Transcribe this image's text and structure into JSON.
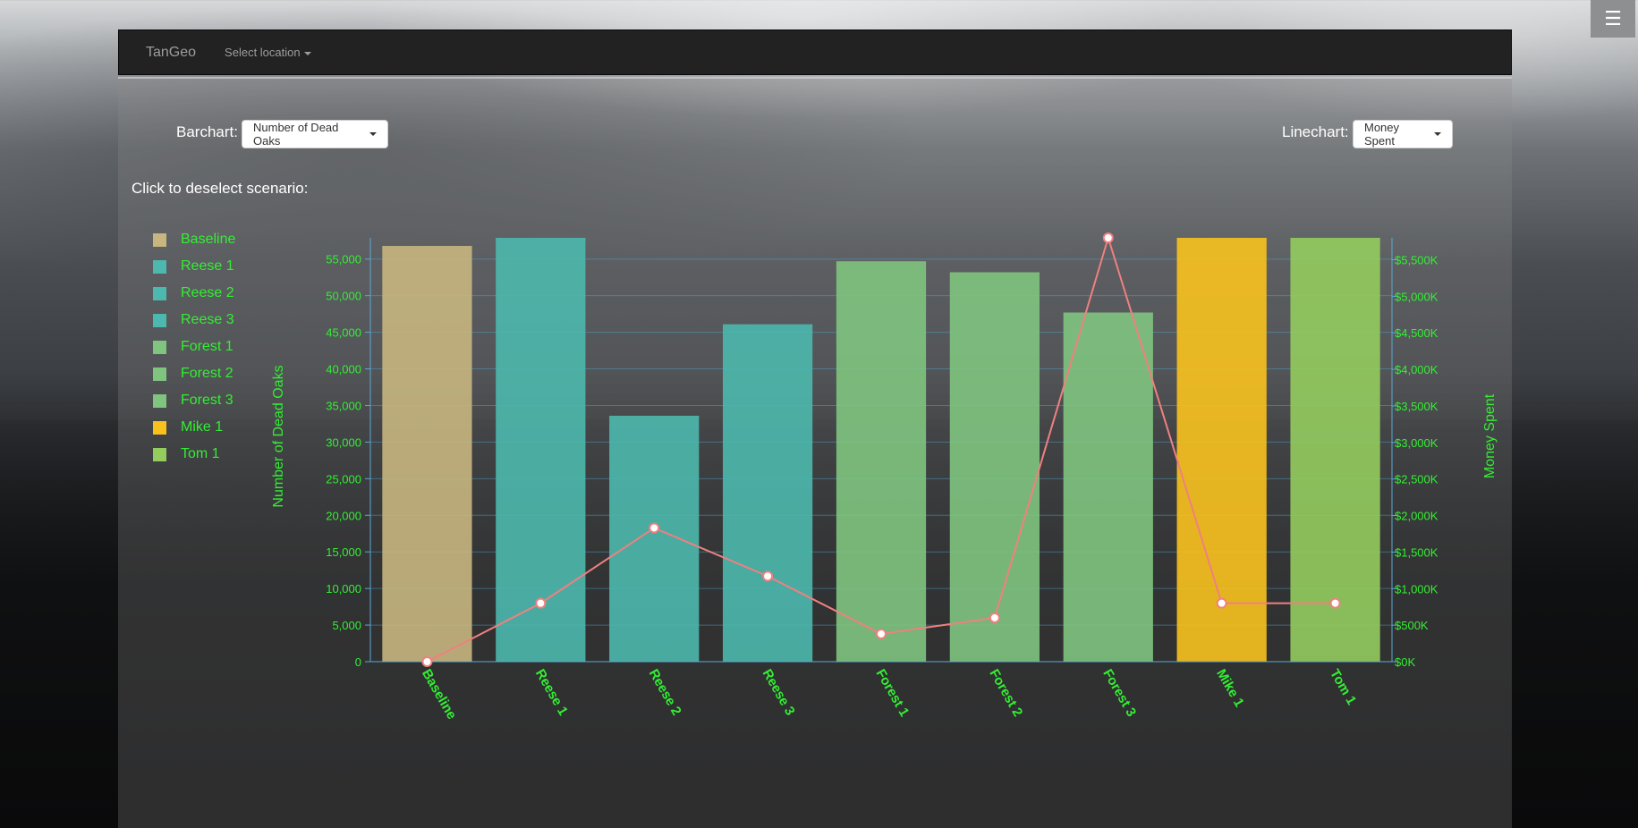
{
  "app": {
    "brand": "TanGeo",
    "location_menu": "Select location"
  },
  "controls": {
    "barchart_label": "Barchart:",
    "barchart_value": "Number of Dead Oaks",
    "linechart_label": "Linechart:",
    "linechart_value": "Money Spent"
  },
  "legend": {
    "title": "Click to deselect scenario:",
    "items": [
      {
        "label": "Baseline",
        "color": "#c8b67f"
      },
      {
        "label": "Reese 1",
        "color": "#4db8ad"
      },
      {
        "label": "Reese 2",
        "color": "#4db8ad"
      },
      {
        "label": "Reese 3",
        "color": "#4db8ad"
      },
      {
        "label": "Forest 1",
        "color": "#7fc47f"
      },
      {
        "label": "Forest 2",
        "color": "#7fc47f"
      },
      {
        "label": "Forest 3",
        "color": "#7fc47f"
      },
      {
        "label": "Mike 1",
        "color": "#f8c21e"
      },
      {
        "label": "Tom 1",
        "color": "#94cc5e"
      }
    ]
  },
  "chart_data": {
    "type": "bar",
    "categories": [
      "Baseline",
      "Reese 1",
      "Reese 2",
      "Reese 3",
      "Forest 1",
      "Forest 2",
      "Forest 3",
      "Mike 1",
      "Tom 1"
    ],
    "bar_series": {
      "name": "Number of Dead Oaks",
      "values": [
        56800,
        57900,
        33600,
        46100,
        54700,
        53200,
        47700,
        57900,
        57900
      ],
      "colors": [
        "#c8b67f",
        "#4db8ad",
        "#4db8ad",
        "#4db8ad",
        "#7fc47f",
        "#7fc47f",
        "#7fc47f",
        "#f8c21e",
        "#94cc5e"
      ]
    },
    "line_series": {
      "name": "Money Spent",
      "type": "line",
      "values": [
        0,
        800,
        1830,
        1170,
        380,
        600,
        5800,
        800,
        800
      ],
      "color": "#f08080"
    },
    "ylabel": "Number of Dead Oaks",
    "y2label": "Money Spent",
    "ylim": [
      0,
      57900
    ],
    "y2lim": [
      0,
      5800
    ],
    "yticks": [
      "0",
      "5,000",
      "10,000",
      "15,000",
      "20,000",
      "25,000",
      "30,000",
      "35,000",
      "40,000",
      "45,000",
      "50,000",
      "55,000"
    ],
    "y2ticks": [
      "$0K",
      "$500K",
      "$1,000K",
      "$1,500K",
      "$2,000K",
      "$2,500K",
      "$3,000K",
      "$3,500K",
      "$4,000K",
      "$4,500K",
      "$5,000K",
      "$5,500K"
    ],
    "grid": true
  }
}
